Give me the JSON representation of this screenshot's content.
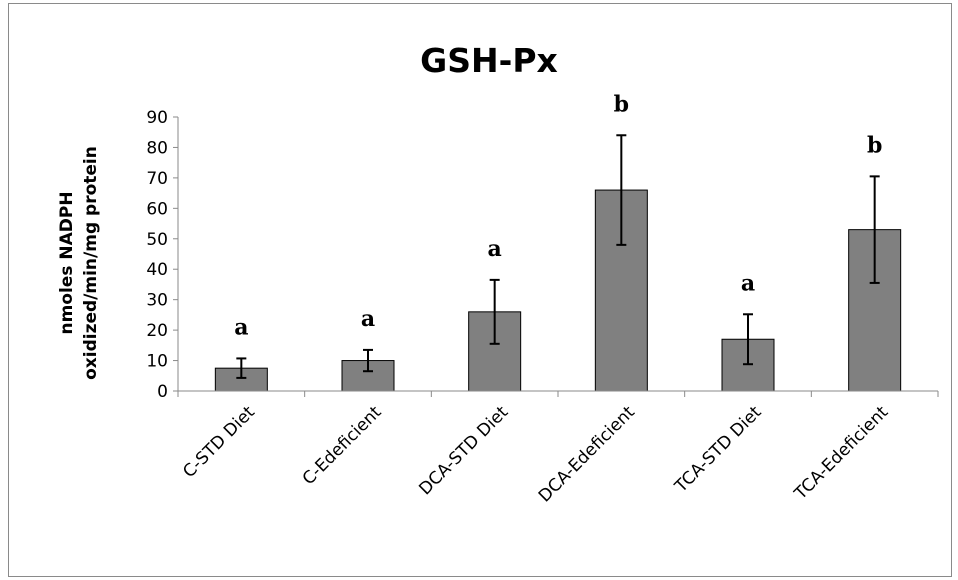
{
  "chart_data": {
    "type": "bar",
    "title": "GSH-Px",
    "ylabel_line1": "nmoles NADPH",
    "ylabel_line2": "oxidized/min/mg protein",
    "xlabel": "",
    "ylim": [
      0,
      90
    ],
    "yticks": [
      0,
      10,
      20,
      30,
      40,
      50,
      60,
      70,
      80,
      90
    ],
    "categories": [
      "C-STD Diet",
      "C-Edeficient",
      "DCA-STD Diet",
      "DCA-Edeficient",
      "TCA-STD Diet",
      "TCA-Edeficient"
    ],
    "values": [
      7.5,
      10,
      26,
      66,
      17,
      53
    ],
    "errors": [
      3.2,
      3.5,
      10.5,
      18,
      8.2,
      17.5
    ],
    "significance_labels": [
      "a",
      "a",
      "a",
      "b",
      "a",
      "b"
    ],
    "bar_color": "#808080",
    "grid": false,
    "legend": "none"
  }
}
